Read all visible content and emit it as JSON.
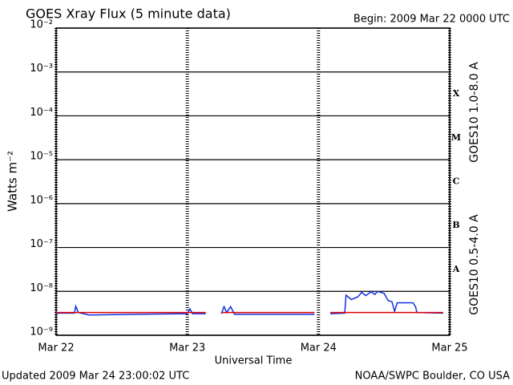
{
  "chart_data": {
    "type": "line",
    "title": "GOES Xray Flux (5 minute data)",
    "subtitle": "Begin:  2009 Mar 22 0000 UTC",
    "y_label": "Watts m⁻²",
    "x_label": "Universal Time",
    "footer_left": "Updated 2009 Mar 24 23:00:02 UTC",
    "footer_right": "NOAA/SWPC Boulder, CO USA",
    "flare_classes": [
      "A",
      "B",
      "C",
      "M",
      "X"
    ],
    "log_y": true,
    "grid": true,
    "xlim": [
      0,
      3
    ],
    "xticks": [
      {
        "value": 0,
        "label": "Mar 22"
      },
      {
        "value": 1,
        "label": "Mar 23"
      },
      {
        "value": 2,
        "label": "Mar 24"
      },
      {
        "value": 3,
        "label": "Mar 25"
      }
    ],
    "ylim": [
      1e-09,
      0.01
    ],
    "yticks": [
      {
        "value": 1e-09,
        "label": "10⁻⁹"
      },
      {
        "value": 1e-08,
        "label": "10⁻⁸"
      },
      {
        "value": 1e-07,
        "label": "10⁻⁷"
      },
      {
        "value": 1e-06,
        "label": "10⁻⁶"
      },
      {
        "value": 1e-05,
        "label": "10⁻⁵"
      },
      {
        "value": 0.0001,
        "label": "10⁻⁴"
      },
      {
        "value": 0.001,
        "label": "10⁻³"
      },
      {
        "value": 0.01,
        "label": "10⁻²"
      }
    ],
    "x": [
      0,
      0.14,
      0.15,
      0.17,
      0.25,
      0.6,
      1.0,
      1.02,
      1.04,
      1.14,
      null,
      1.26,
      1.28,
      1.3,
      1.33,
      1.36,
      1.6,
      1.97,
      null,
      2.09,
      2.2,
      2.21,
      2.25,
      2.3,
      2.33,
      2.36,
      2.4,
      2.43,
      2.45,
      2.5,
      2.53,
      2.56,
      2.58,
      2.6,
      2.72,
      2.74,
      2.75,
      2.95
    ],
    "series": [
      {
        "name": "GOES10 1.0-8.0 A",
        "color": "#e00000",
        "values": [
          3.3e-09,
          3.3e-09,
          3.3e-09,
          3.3e-09,
          3.3e-09,
          3.3e-09,
          3.3e-09,
          3.3e-09,
          3.3e-09,
          3.3e-09,
          null,
          3.3e-09,
          3.3e-09,
          3.3e-09,
          3.3e-09,
          3.3e-09,
          3.3e-09,
          3.3e-09,
          null,
          3.3e-09,
          3.3e-09,
          3.3e-09,
          3.3e-09,
          3.3e-09,
          3.3e-09,
          3.3e-09,
          3.3e-09,
          3.3e-09,
          3.3e-09,
          3.3e-09,
          3.3e-09,
          3.3e-09,
          3.3e-09,
          3.3e-09,
          3.3e-09,
          3.3e-09,
          3.3e-09,
          3.3e-09
        ]
      },
      {
        "name": "GOES10 0.5-4.0 A",
        "color": "#1030e0",
        "values": [
          3.2e-09,
          3.2e-09,
          4.6e-09,
          3.3e-09,
          2.9e-09,
          3e-09,
          3.1e-09,
          4e-09,
          3.1e-09,
          3.1e-09,
          null,
          3.1e-09,
          4.5e-09,
          3.3e-09,
          4.5e-09,
          3e-09,
          3e-09,
          3e-09,
          null,
          3.1e-09,
          3.2e-09,
          8.2e-09,
          6.5e-09,
          7.5e-09,
          9.5e-09,
          8e-09,
          9.8e-09,
          8.5e-09,
          1e-08,
          9e-09,
          6.2e-09,
          5.8e-09,
          3.5e-09,
          5.5e-09,
          5.5e-09,
          4.5e-09,
          3.3e-09,
          3.2e-09
        ]
      }
    ]
  }
}
